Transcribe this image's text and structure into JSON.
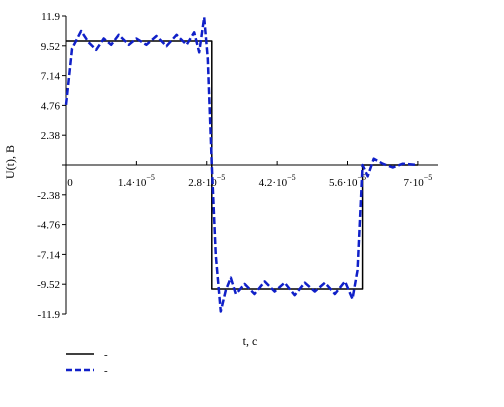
{
  "chart_data": {
    "type": "line",
    "title": "",
    "xlabel": "t, c",
    "ylabel": "U(t), B",
    "xlim": [
      0,
      7.4e-05
    ],
    "ylim": [
      -11.9,
      11.9
    ],
    "x_ticks": [
      {
        "value": 0,
        "mantissa": "0",
        "exponent": ""
      },
      {
        "value": 1.4e-05,
        "mantissa": "1.4·10",
        "exponent": "−5"
      },
      {
        "value": 2.8e-05,
        "mantissa": "2.8·10",
        "exponent": "−5"
      },
      {
        "value": 4.2e-05,
        "mantissa": "4.2·10",
        "exponent": "−5"
      },
      {
        "value": 5.6e-05,
        "mantissa": "5.6·10",
        "exponent": "−5"
      },
      {
        "value": 7e-05,
        "mantissa": "7·10",
        "exponent": "−5"
      }
    ],
    "y_ticks": [
      {
        "value": 11.9,
        "label": "11.9"
      },
      {
        "value": 9.52,
        "label": "9.52"
      },
      {
        "value": 7.14,
        "label": "7.14"
      },
      {
        "value": 4.76,
        "label": "4.76"
      },
      {
        "value": 2.38,
        "label": "2.38"
      },
      {
        "value": 0,
        "label": ""
      },
      {
        "value": -2.38,
        "label": "-2.38"
      },
      {
        "value": -4.76,
        "label": "-4.76"
      },
      {
        "value": -7.14,
        "label": "-7.14"
      },
      {
        "value": -9.52,
        "label": "-9.52"
      },
      {
        "value": -11.9,
        "label": "-11.9"
      }
    ],
    "legend_position": "bottom-left",
    "series": [
      {
        "name": "-",
        "color": "#000000",
        "style": "solid",
        "x": [
          0,
          2.9e-05,
          2.9e-05,
          5.9e-05,
          5.9e-05,
          7e-05
        ],
        "y": [
          9.9,
          9.9,
          -9.9,
          -9.9,
          0,
          0
        ]
      },
      {
        "name": "-",
        "color": "#1020c8",
        "style": "dashed",
        "x": [
          0,
          1.2e-06,
          3e-06,
          4.5e-06,
          6e-06,
          7.5e-06,
          9e-06,
          1.05e-05,
          1.25e-05,
          1.4e-05,
          1.6e-05,
          1.8e-05,
          2e-05,
          2.2e-05,
          2.4e-05,
          2.55e-05,
          2.65e-05,
          2.75e-05,
          2.82e-05,
          2.9e-05,
          2.98e-05,
          3.08e-05,
          3.18e-05,
          3.28e-05,
          3.38e-05,
          3.55e-05,
          3.75e-05,
          3.95e-05,
          4.15e-05,
          4.35e-05,
          4.55e-05,
          4.75e-05,
          4.95e-05,
          5.15e-05,
          5.35e-05,
          5.55e-05,
          5.7e-05,
          5.8e-05,
          5.9e-05,
          6e-05,
          6.12e-05,
          6.3e-05,
          6.5e-05,
          6.7e-05,
          7e-05
        ],
        "y": [
          4.8,
          9.3,
          10.7,
          9.8,
          9.2,
          10.1,
          9.6,
          10.4,
          9.6,
          10.1,
          9.6,
          10.3,
          9.5,
          10.4,
          9.6,
          10.6,
          9.0,
          11.8,
          8.5,
          0,
          -7.2,
          -11.7,
          -10.0,
          -9.0,
          -10.3,
          -9.5,
          -10.3,
          -9.3,
          -10.1,
          -9.4,
          -10.4,
          -9.4,
          -10.1,
          -9.4,
          -10.3,
          -9.3,
          -10.7,
          -8.4,
          0,
          -0.9,
          0.5,
          0.1,
          -0.2,
          0.1,
          0
        ]
      }
    ]
  }
}
